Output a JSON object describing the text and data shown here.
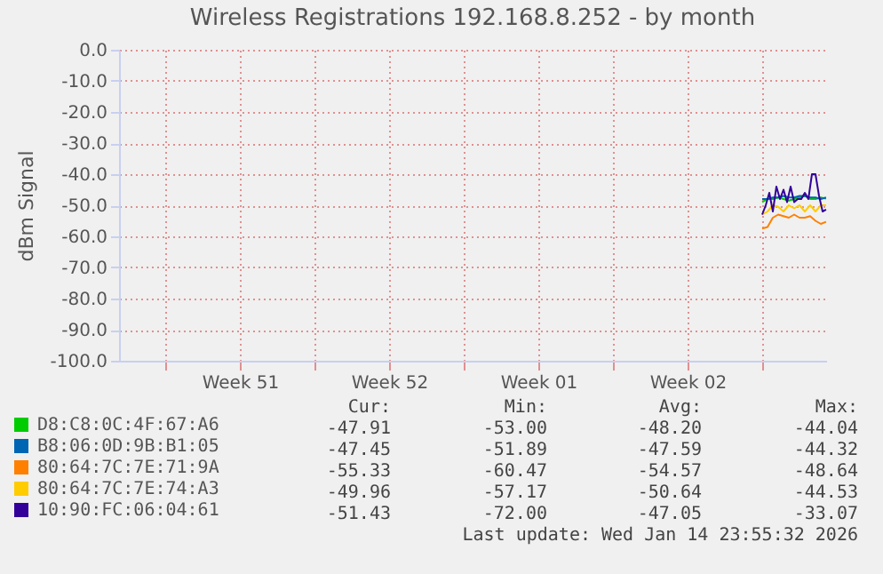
{
  "chart_data": {
    "type": "line",
    "title": "Wireless Registrations 192.168.8.252 - by month",
    "ylabel": "dBm Signal",
    "x": [
      "2026-01-12T00:00",
      "2026-01-12T06:00",
      "2026-01-12T12:00",
      "2026-01-12T18:00",
      "2026-01-13T00:00",
      "2026-01-13T06:00",
      "2026-01-13T12:00",
      "2026-01-13T18:00",
      "2026-01-14T00:00",
      "2026-01-14T06:00",
      "2026-01-14T12:00",
      "2026-01-14T18:00",
      "2026-01-14T23:55"
    ],
    "series": [
      {
        "name": "D8:C8:0C:4F:67:A6",
        "color": "#00cc00",
        "values": [
          -49,
          -48,
          -48,
          -47.5,
          -48,
          -48.5,
          -48,
          -47.5,
          -47,
          -48,
          -48,
          -47.5,
          -47.9
        ]
      },
      {
        "name": "B8:06:0D:9B:B1:05",
        "color": "#0066b3",
        "values": [
          -48,
          -48,
          -47.5,
          -47.5,
          -47,
          -47.5,
          -47.5,
          -47,
          -47,
          -47.5,
          -47.5,
          -48,
          -47.5
        ]
      },
      {
        "name": "80:64:7C:7E:71:9A",
        "color": "#ff8000",
        "values": [
          -57.5,
          -57,
          -54,
          -53,
          -53.5,
          -54,
          -53,
          -54,
          -54,
          -53.5,
          -55,
          -56,
          -55.3
        ]
      },
      {
        "name": "80:64:7C:7E:74:A3",
        "color": "#ffcc00",
        "values": [
          -53,
          -52,
          -50,
          -50.5,
          -52,
          -50,
          -51,
          -50,
          -52,
          -50,
          -52,
          -50,
          -50
        ]
      },
      {
        "name": "10:90:FC:06:04:61",
        "color": "#330099",
        "x": [
          "2026-01-12T00:00",
          "2026-01-12T04:00",
          "2026-01-12T08:00",
          "2026-01-12T12:00",
          "2026-01-12T16:00",
          "2026-01-12T20:00",
          "2026-01-13T00:00",
          "2026-01-13T04:00",
          "2026-01-13T08:00",
          "2026-01-13T12:00",
          "2026-01-13T16:00",
          "2026-01-13T20:00",
          "2026-01-14T00:00",
          "2026-01-14T04:00",
          "2026-01-14T08:00",
          "2026-01-14T12:00",
          "2026-01-14T16:00",
          "2026-01-14T20:00",
          "2026-01-14T23:55"
        ],
        "values": [
          -53,
          -50,
          -46,
          -52,
          -44,
          -48,
          -45,
          -49,
          -44,
          -49,
          -48,
          -48,
          -46,
          -48,
          -40,
          -40,
          -47,
          -52,
          -51.4
        ]
      }
    ],
    "xlim": [
      "2025-12-12T20:00",
      "2026-01-15T00:00"
    ],
    "xticks": [
      {
        "value": "2025-12-15T00:00",
        "label": null
      },
      {
        "value": "2025-12-18T12:00",
        "label": "Week 51"
      },
      {
        "value": "2025-12-22T00:00",
        "label": null
      },
      {
        "value": "2025-12-25T12:00",
        "label": "Week 52"
      },
      {
        "value": "2025-12-29T00:00",
        "label": null
      },
      {
        "value": "2026-01-01T12:00",
        "label": "Week 01"
      },
      {
        "value": "2026-01-05T00:00",
        "label": null
      },
      {
        "value": "2026-01-08T12:00",
        "label": "Week 02"
      },
      {
        "value": "2026-01-12T00:00",
        "label": null
      }
    ],
    "ylim": [
      -100,
      0
    ],
    "yticks": [
      {
        "value": -100,
        "label": "-100.0"
      },
      {
        "value": -90,
        "label": "-90.0"
      },
      {
        "value": -80,
        "label": "-80.0"
      },
      {
        "value": -70,
        "label": "-70.0"
      },
      {
        "value": -60,
        "label": "-60.0"
      },
      {
        "value": -50,
        "label": "-50.0"
      },
      {
        "value": -40,
        "label": "-40.0"
      },
      {
        "value": -30,
        "label": "-30.0"
      },
      {
        "value": -20,
        "label": "-20.0"
      },
      {
        "value": -10,
        "label": "-10.0"
      },
      {
        "value": 0,
        "label": "0.0"
      }
    ],
    "grid": true,
    "legend": "bottom left",
    "marker": "none",
    "line_style": "solid",
    "annotations": [
      "Cur:",
      "Min:",
      "Avg:",
      "Max:",
      "-47.91",
      "-53.00",
      "-48.20",
      "-44.04",
      "-47.45",
      "-51.89",
      "-47.59",
      "-44.32",
      "-55.33",
      "-60.47",
      "-54.57",
      "-48.64",
      "-49.96",
      "-57.17",
      "-50.64",
      "-44.53",
      "-51.43",
      "-72.00",
      "-47.05",
      "-33.07",
      "Last update: Wed Jan 14 23:55:32 2026"
    ]
  }
}
